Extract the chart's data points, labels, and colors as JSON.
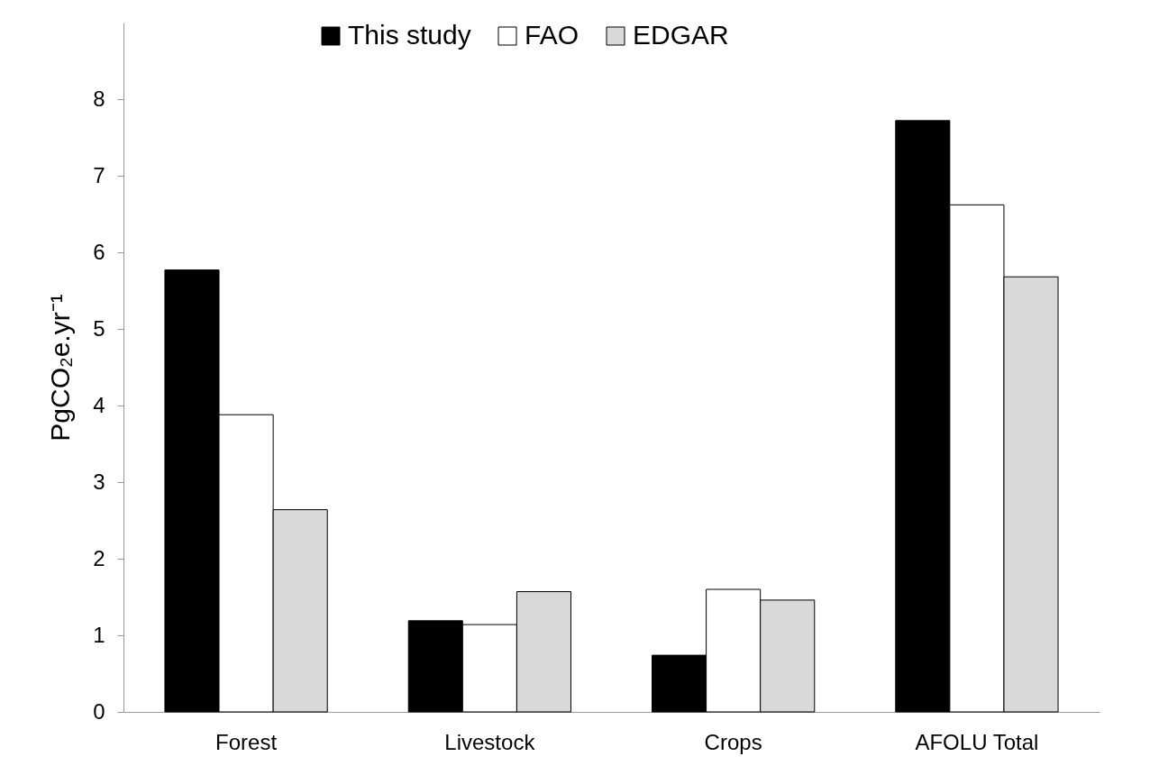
{
  "chart_data": {
    "type": "bar",
    "ylabel": "PgCO₂e.yr⁻¹",
    "categories": [
      "Forest",
      "Livestock",
      "Crops",
      "AFOLU Total"
    ],
    "series": [
      {
        "name": "This study",
        "color": "#000000",
        "values": [
          5.77,
          1.19,
          0.74,
          7.72
        ]
      },
      {
        "name": "FAO",
        "color": "#ffffff",
        "values": [
          3.88,
          1.14,
          1.6,
          6.62
        ]
      },
      {
        "name": "EDGAR",
        "color": "#d9d9d9",
        "values": [
          2.64,
          1.57,
          1.46,
          5.68
        ]
      }
    ],
    "ylim": [
      0,
      9
    ],
    "yticks": [
      0,
      1,
      2,
      3,
      4,
      5,
      6,
      7,
      8
    ],
    "grid": false,
    "legend": "top"
  }
}
